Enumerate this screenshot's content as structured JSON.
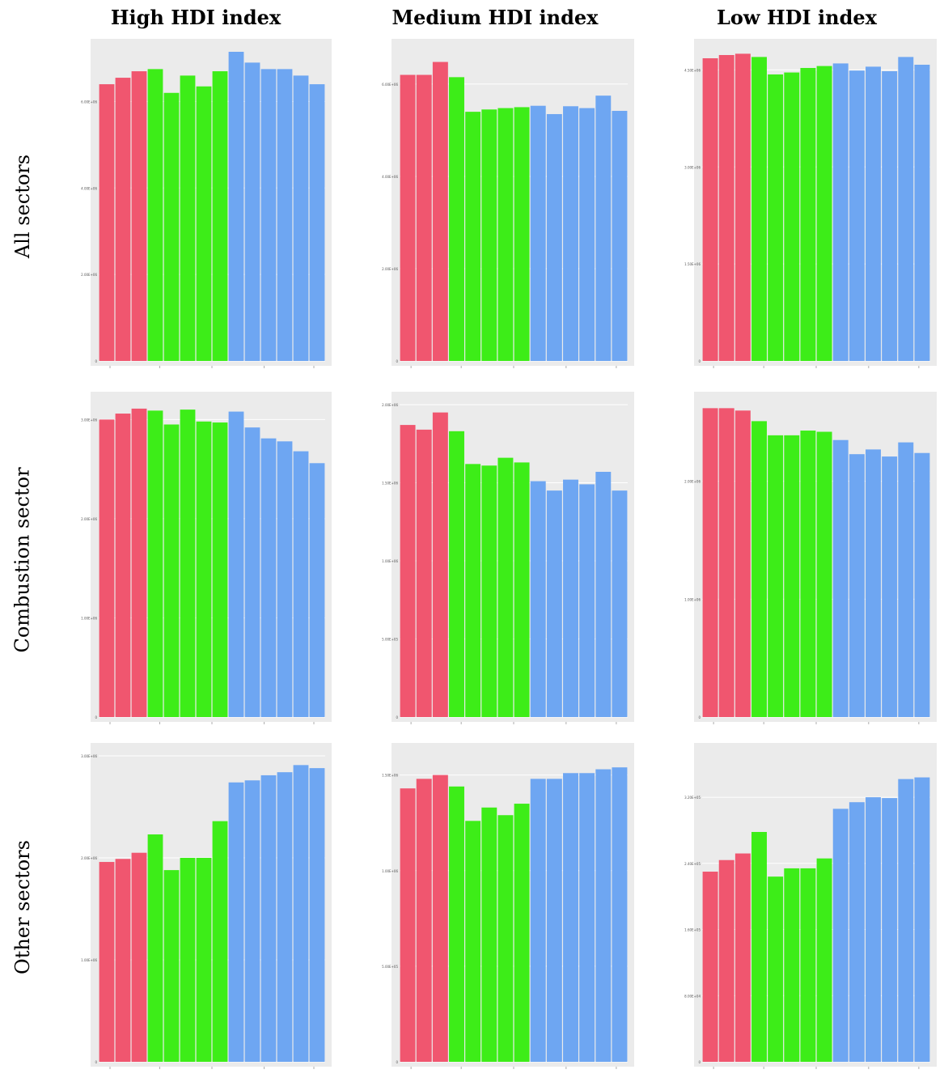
{
  "column_headers": [
    "High HDI index",
    "Medium HDI index",
    "Low HDI index"
  ],
  "row_headers": [
    "All sectors",
    "Combustion sector",
    "Other sectors"
  ],
  "series_colors": [
    "#f0566f",
    "#3ded18",
    "#6ea6f2"
  ],
  "chart_data": [
    {
      "type": "bar",
      "row": "All sectors",
      "column": "High HDI index",
      "grid": true,
      "ylim": [
        0,
        7150000
      ],
      "yticks": [
        0,
        2000000,
        4000000,
        6000000
      ],
      "ytick_labels": [
        "0",
        "2.00E+06",
        "4.00E+06",
        "6.00E+06"
      ],
      "groups": [
        3,
        5,
        6
      ],
      "values": [
        6400000,
        6550000,
        6700000,
        6750000,
        6200000,
        6600000,
        6350000,
        6700000,
        7150000,
        6900000,
        6750000,
        6750000,
        6600000,
        6400000
      ]
    },
    {
      "type": "bar",
      "row": "All sectors",
      "column": "Medium HDI index",
      "grid": true,
      "ylim": [
        0,
        6700000
      ],
      "yticks": [
        0,
        2000000,
        4000000,
        6000000
      ],
      "ytick_labels": [
        "0",
        "2.00E+06",
        "4.00E+06",
        "6.00E+06"
      ],
      "groups": [
        3,
        5,
        6
      ],
      "values": [
        6200000,
        6200000,
        6480000,
        6150000,
        5400000,
        5450000,
        5480000,
        5500000,
        5530000,
        5350000,
        5520000,
        5480000,
        5750000,
        5420000
      ]
    },
    {
      "type": "bar",
      "row": "All sectors",
      "column": "Low HDI index",
      "grid": true,
      "ylim": [
        0,
        4780000
      ],
      "yticks": [
        0,
        1500000,
        3000000,
        4500000
      ],
      "ytick_labels": [
        "0",
        "1.50E+06",
        "3.00E+06",
        "4.50E+06"
      ],
      "groups": [
        3,
        5,
        6
      ],
      "values": [
        4680000,
        4730000,
        4750000,
        4700000,
        4430000,
        4460000,
        4530000,
        4560000,
        4600000,
        4490000,
        4550000,
        4480000,
        4700000,
        4580000
      ]
    },
    {
      "type": "bar",
      "row": "Combustion sector",
      "column": "High HDI index",
      "grid": true,
      "ylim": [
        0,
        3150000
      ],
      "yticks": [
        0,
        1000000,
        2000000,
        3000000
      ],
      "ytick_labels": [
        "0",
        "1.00E+06",
        "2.00E+06",
        "3.00E+06"
      ],
      "groups": [
        3,
        5,
        6
      ],
      "values": [
        3000000,
        3060000,
        3110000,
        3090000,
        2950000,
        3100000,
        2980000,
        2970000,
        3080000,
        2920000,
        2810000,
        2780000,
        2680000,
        2560000
      ]
    },
    {
      "type": "bar",
      "row": "Combustion sector",
      "column": "Medium HDI index",
      "grid": true,
      "ylim": [
        0,
        2000000
      ],
      "yticks": [
        0,
        500000,
        1000000,
        1500000,
        2000000
      ],
      "ytick_labels": [
        "0",
        "5.00E+05",
        "1.00E+06",
        "1.50E+06",
        "2.00E+06"
      ],
      "groups": [
        3,
        5,
        6
      ],
      "values": [
        1870000,
        1840000,
        1950000,
        1830000,
        1620000,
        1610000,
        1660000,
        1630000,
        1510000,
        1450000,
        1520000,
        1490000,
        1570000,
        1450000
      ]
    },
    {
      "type": "bar",
      "row": "Combustion sector",
      "column": "Low HDI index",
      "grid": true,
      "ylim": [
        0,
        2650000
      ],
      "yticks": [
        0,
        1000000,
        2000000
      ],
      "ytick_labels": [
        "0",
        "1.00E+06",
        "2.00E+06"
      ],
      "groups": [
        3,
        5,
        6
      ],
      "values": [
        2620000,
        2620000,
        2600000,
        2510000,
        2390000,
        2390000,
        2430000,
        2420000,
        2350000,
        2230000,
        2270000,
        2210000,
        2330000,
        2240000
      ]
    },
    {
      "type": "bar",
      "row": "Other sectors",
      "column": "High HDI index",
      "grid": true,
      "ylim": [
        0,
        3000000
      ],
      "yticks": [
        0,
        1000000,
        2000000,
        3000000
      ],
      "ytick_labels": [
        "0",
        "1.00E+06",
        "2.00E+06",
        "3.00E+06"
      ],
      "groups": [
        3,
        5,
        6
      ],
      "values": [
        1960000,
        1990000,
        2050000,
        2230000,
        1880000,
        2000000,
        2000000,
        2360000,
        2740000,
        2760000,
        2810000,
        2840000,
        2910000,
        2880000
      ]
    },
    {
      "type": "bar",
      "row": "Other sectors",
      "column": "Medium HDI index",
      "grid": true,
      "ylim": [
        0,
        1600000
      ],
      "yticks": [
        0,
        500000,
        1000000,
        1500000
      ],
      "ytick_labels": [
        "0",
        "5.00E+05",
        "1.00E+06",
        "1.50E+06"
      ],
      "groups": [
        3,
        5,
        6
      ],
      "values": [
        1430000,
        1480000,
        1500000,
        1440000,
        1260000,
        1330000,
        1290000,
        1350000,
        1480000,
        1480000,
        1510000,
        1510000,
        1530000,
        1540000
      ]
    },
    {
      "type": "bar",
      "row": "Other sectors",
      "column": "Low HDI index",
      "grid": true,
      "ylim": [
        0,
        370000
      ],
      "yticks": [
        0,
        80000,
        160000,
        240000,
        320000
      ],
      "ytick_labels": [
        "0",
        "8.00E+04",
        "1.60E+05",
        "2.40E+05",
        "3.20E+05"
      ],
      "groups": [
        3,
        5,
        6
      ],
      "values": [
        230000,
        244000,
        252000,
        278000,
        224000,
        234000,
        234000,
        246000,
        306000,
        314000,
        320000,
        319000,
        342000,
        344000
      ]
    }
  ]
}
